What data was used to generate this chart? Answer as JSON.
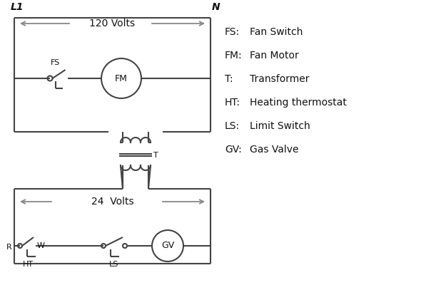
{
  "bg_color": "#ffffff",
  "line_color": "#444444",
  "arrow_color": "#888888",
  "text_color": "#111111",
  "legend": [
    [
      "FS:",
      "Fan Switch"
    ],
    [
      "FM:",
      "Fan Motor"
    ],
    [
      "T:",
      "Transformer"
    ],
    [
      "HT:",
      "Heating thermostat"
    ],
    [
      "LS:",
      "Limit Switch"
    ],
    [
      "GV:",
      "Gas Valve"
    ]
  ],
  "lw": 1.5
}
